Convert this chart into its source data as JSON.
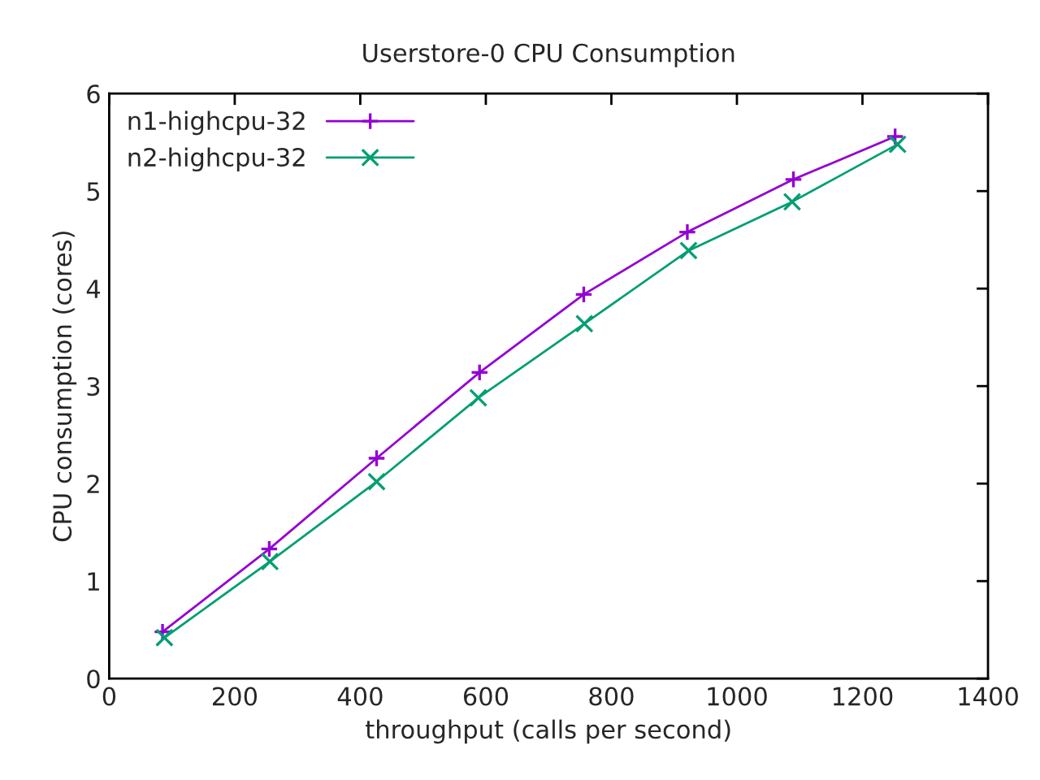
{
  "chart_data": {
    "type": "line",
    "title": "Userstore-0 CPU Consumption",
    "xlabel": "throughput (calls per second)",
    "ylabel": "CPU consumption (cores)",
    "xlim": [
      0,
      1400
    ],
    "xticks": [
      0,
      200,
      400,
      600,
      800,
      1000,
      1200,
      1400
    ],
    "ylim": [
      0,
      6
    ],
    "yticks": [
      0,
      1,
      2,
      3,
      4,
      5,
      6
    ],
    "grid": false,
    "legend": "top left",
    "line_style": "solid",
    "series": [
      {
        "name": "n1-highcpu-32",
        "color": "#9400d3",
        "marker": "plus",
        "x": [
          85,
          255,
          426,
          590,
          756,
          921,
          1090,
          1252
        ],
        "values": [
          0.48,
          1.33,
          2.26,
          3.14,
          3.94,
          4.58,
          5.12,
          5.56
        ]
      },
      {
        "name": "n2-highcpu-32",
        "color": "#009e73",
        "marker": "cross",
        "x": [
          88,
          256,
          426,
          588,
          757,
          923,
          1088,
          1256
        ],
        "values": [
          0.42,
          1.2,
          2.02,
          2.88,
          3.64,
          4.39,
          4.89,
          5.48
        ]
      }
    ]
  }
}
